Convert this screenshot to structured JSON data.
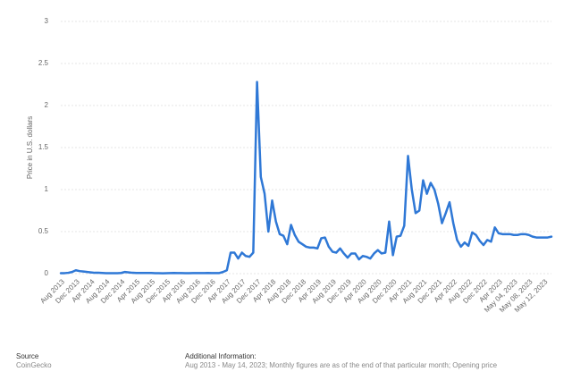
{
  "chart_data": {
    "type": "line",
    "y_label": "Price in U.S. dollars",
    "categories": [
      "Aug 2013",
      null,
      null,
      null,
      "Dec 2013",
      null,
      null,
      null,
      "Apr 2014",
      null,
      null,
      null,
      "Aug 2014",
      null,
      null,
      null,
      "Dec 2014",
      null,
      null,
      null,
      "Apr 2015",
      null,
      null,
      null,
      "Aug 2015",
      null,
      null,
      null,
      "Dec 2015",
      null,
      null,
      null,
      "Apr 2016",
      null,
      null,
      null,
      "Aug 2016",
      null,
      null,
      null,
      "Dec 2016",
      null,
      null,
      null,
      "Apr 2017",
      null,
      null,
      null,
      "Aug 2017",
      null,
      null,
      null,
      "Dec 2017",
      null,
      null,
      null,
      "Apr 2018",
      null,
      null,
      null,
      "Aug 2018",
      null,
      null,
      null,
      "Dec 2018",
      null,
      null,
      null,
      "Apr 2019",
      null,
      null,
      null,
      "Aug 2019",
      null,
      null,
      null,
      "Dec 2019",
      null,
      null,
      null,
      "Apr 2020",
      null,
      null,
      null,
      "Aug 2020",
      null,
      null,
      null,
      "Dec 2020",
      null,
      null,
      null,
      "Apr 2021",
      null,
      null,
      null,
      "Aug 2021",
      null,
      null,
      null,
      "Dec 2021",
      null,
      null,
      null,
      "Apr 2022",
      null,
      null,
      null,
      "Aug 2022",
      null,
      null,
      null,
      "Dec 2022",
      null,
      null,
      null,
      "Apr 2023",
      null,
      null,
      null,
      "May 04, 2023",
      null,
      null,
      null,
      "May 08, 2023",
      null,
      null,
      null,
      "May 12, 2023",
      null,
      null
    ],
    "series": [
      {
        "color": "#2f78d6",
        "values": [
          0.005,
          0.006,
          0.01,
          0.02,
          0.04,
          0.03,
          0.025,
          0.02,
          0.015,
          0.01,
          0.01,
          0.008,
          0.005,
          0.006,
          0.005,
          0.005,
          0.008,
          0.02,
          0.015,
          0.01,
          0.008,
          0.008,
          0.008,
          0.008,
          0.008,
          0.006,
          0.005,
          0.004,
          0.006,
          0.007,
          0.008,
          0.007,
          0.007,
          0.006,
          0.006,
          0.007,
          0.007,
          0.007,
          0.007,
          0.008,
          0.007,
          0.007,
          0.007,
          0.02,
          0.04,
          0.25,
          0.25,
          0.18,
          0.25,
          0.21,
          0.2,
          0.25,
          2.28,
          1.15,
          0.95,
          0.5,
          0.87,
          0.62,
          0.47,
          0.45,
          0.35,
          0.58,
          0.46,
          0.38,
          0.35,
          0.32,
          0.31,
          0.31,
          0.3,
          0.42,
          0.43,
          0.32,
          0.26,
          0.25,
          0.3,
          0.24,
          0.19,
          0.24,
          0.24,
          0.17,
          0.21,
          0.2,
          0.18,
          0.24,
          0.28,
          0.24,
          0.25,
          0.62,
          0.22,
          0.44,
          0.45,
          0.57,
          1.4,
          1.0,
          0.72,
          0.75,
          1.11,
          0.95,
          1.08,
          1.0,
          0.83,
          0.6,
          0.72,
          0.85,
          0.6,
          0.4,
          0.32,
          0.37,
          0.33,
          0.49,
          0.46,
          0.39,
          0.34,
          0.4,
          0.38,
          0.55,
          0.48,
          0.47,
          0.47,
          0.47,
          0.46,
          0.46,
          0.47,
          0.47,
          0.46,
          0.44,
          0.43,
          0.43,
          0.43,
          0.43,
          0.44
        ]
      }
    ],
    "ylim": [
      0,
      3
    ],
    "yticks": [
      0,
      0.5,
      1,
      1.5,
      2,
      2.5,
      3
    ],
    "grid": true
  },
  "footer": {
    "source_title": "Source",
    "source": "CoinGecko",
    "info_title": "Additional Information:",
    "info": "Aug 2013 - May 14, 2023; Monthly figures are as of the end of that particular month; Opening price"
  }
}
